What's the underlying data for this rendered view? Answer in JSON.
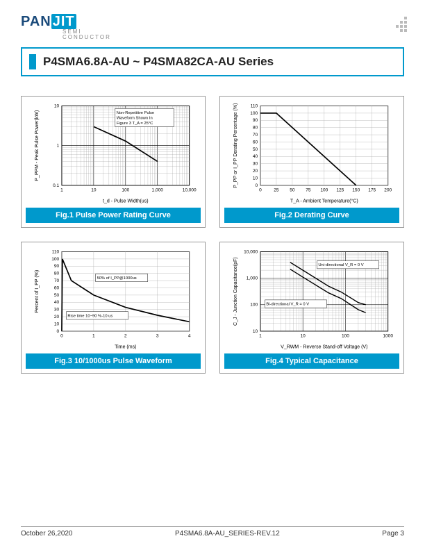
{
  "header": {
    "logo_pan": "PAN",
    "logo_jit": "JIT",
    "logo_sub1": "SEMI",
    "logo_sub2": "CONDUCTOR",
    "title": "P4SMA6.8A-AU ~ P4SMA82CA-AU Series"
  },
  "colors": {
    "accent": "#0099cc",
    "logo_dark": "#1a4a7a",
    "grid": "#888888",
    "line": "#000000",
    "bg": "#ffffff"
  },
  "chart1": {
    "caption": "Fig.1 Pulse Power Rating Curve",
    "ylabel": "P_PPM - Peak Pulse Power(kW)",
    "xlabel": "t_d - Pulse Width(us)",
    "note": "Non-Repetitive Pulse Waveform Shown In Figure 3 T_A = 25°C",
    "x_log_min": 1,
    "x_log_max": 10000,
    "y_log_min": 0.1,
    "y_log_max": 10,
    "xticks": [
      "1",
      "10",
      "100",
      "1,000",
      "10,000"
    ],
    "yticks": [
      "0.1",
      "1",
      "10"
    ],
    "line": [
      [
        10,
        3.0
      ],
      [
        100,
        1.3
      ],
      [
        1000,
        0.4
      ]
    ]
  },
  "chart2": {
    "caption": "Fig.2 Derating Curve",
    "ylabel": "P_PP or I_PP Derating Percentage (%)",
    "xlabel": "T_A - Ambient Temperature(°C)",
    "xlim": [
      0,
      200
    ],
    "ylim": [
      0,
      110
    ],
    "xticks": [
      0,
      25,
      50,
      75,
      100,
      125,
      150,
      175,
      200
    ],
    "yticks": [
      0,
      10,
      20,
      30,
      40,
      50,
      60,
      70,
      80,
      90,
      100,
      110
    ],
    "line": [
      [
        0,
        100
      ],
      [
        25,
        100
      ],
      [
        150,
        0
      ]
    ]
  },
  "chart3": {
    "caption": "Fig.3 10/1000us Pulse Waveform",
    "ylabel": "Percent of I_PP (%)",
    "xlabel": "Time (ms)",
    "note1": "50% of I_PP@1000us",
    "note2": "Rise time 10~90 %-10 us",
    "xlim": [
      0,
      4
    ],
    "ylim": [
      0,
      110
    ],
    "xticks": [
      0,
      1,
      2,
      3,
      4
    ],
    "yticks": [
      0,
      10,
      20,
      30,
      40,
      50,
      60,
      70,
      80,
      90,
      100,
      110
    ],
    "line": [
      [
        0,
        0
      ],
      [
        0.02,
        100
      ],
      [
        0.3,
        70
      ],
      [
        1,
        50
      ],
      [
        2,
        33
      ],
      [
        3,
        22
      ],
      [
        4,
        13
      ]
    ]
  },
  "chart4": {
    "caption": "Fig.4 Typical Capacitance",
    "ylabel": "C_J - Junction Capacitance(pF)",
    "xlabel": "V_RWM - Reverse  Stand-off Voltage (V)",
    "note_uni": "Uni-directional V_R = 0 V",
    "note_bi": "Bi-directional V_R = 0 V",
    "x_log_min": 1,
    "x_log_max": 1000,
    "y_log_min": 10,
    "y_log_max": 10000,
    "xticks": [
      "1",
      "10",
      "100",
      "1000"
    ],
    "yticks": [
      "10",
      "100",
      "1,000",
      "10,000"
    ],
    "line_uni": [
      [
        5,
        4000
      ],
      [
        10,
        2000
      ],
      [
        40,
        500
      ],
      [
        80,
        300
      ],
      [
        200,
        120
      ],
      [
        300,
        100
      ]
    ],
    "line_bi": [
      [
        5,
        2200
      ],
      [
        10,
        1100
      ],
      [
        40,
        280
      ],
      [
        80,
        170
      ],
      [
        200,
        65
      ],
      [
        300,
        50
      ]
    ]
  },
  "footer": {
    "date": "October 26,2020",
    "rev": "P4SMA6.8A-AU_SERIES-REV.12",
    "page": "Page 3"
  }
}
